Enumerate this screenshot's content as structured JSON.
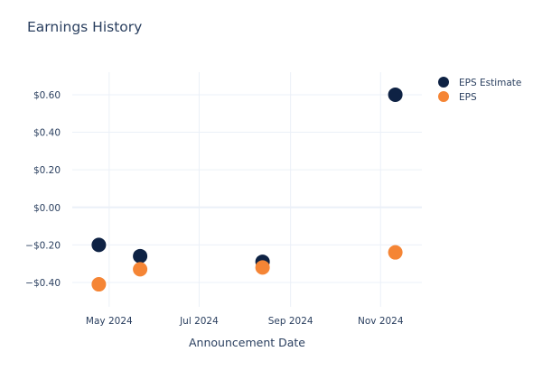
{
  "chart_data": {
    "type": "scatter",
    "title": "Earnings History",
    "xlabel": "Announcement Date",
    "ylabel": "",
    "x_type": "date",
    "xlim": [
      "2024-04-06",
      "2024-11-29"
    ],
    "ylim": [
      -0.53,
      0.72
    ],
    "x_ticks": [
      {
        "value": "2024-05-01",
        "label": "May 2024"
      },
      {
        "value": "2024-07-01",
        "label": "Jul 2024"
      },
      {
        "value": "2024-09-01",
        "label": "Sep 2024"
      },
      {
        "value": "2024-11-01",
        "label": "Nov 2024"
      }
    ],
    "y_ticks": [
      {
        "value": 0.6,
        "label": "$0.60"
      },
      {
        "value": 0.4,
        "label": "$0.40"
      },
      {
        "value": 0.2,
        "label": "$0.20"
      },
      {
        "value": 0.0,
        "label": "$0.00"
      },
      {
        "value": -0.2,
        "label": "−$0.20"
      },
      {
        "value": -0.4,
        "label": "−$0.40"
      }
    ],
    "grid": true,
    "legend_position": "top-right",
    "series": [
      {
        "name": "EPS Estimate",
        "color": "#0e2244",
        "points": [
          {
            "x": "2024-04-24",
            "y": -0.2
          },
          {
            "x": "2024-05-22",
            "y": -0.26
          },
          {
            "x": "2024-08-13",
            "y": -0.29
          },
          {
            "x": "2024-11-11",
            "y": 0.6
          }
        ]
      },
      {
        "name": "EPS",
        "color": "#f58535",
        "points": [
          {
            "x": "2024-04-24",
            "y": -0.41
          },
          {
            "x": "2024-05-22",
            "y": -0.33
          },
          {
            "x": "2024-08-13",
            "y": -0.32
          },
          {
            "x": "2024-11-11",
            "y": -0.24
          }
        ]
      }
    ]
  }
}
